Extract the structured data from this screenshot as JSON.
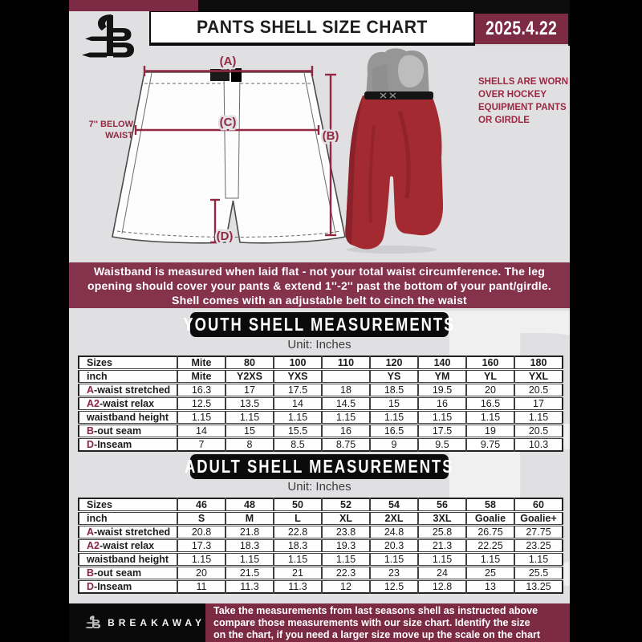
{
  "header": {
    "title": "PANTS SHELL SIZE CHART",
    "date": "2025.4.22"
  },
  "diagram": {
    "label_a": "(A)",
    "label_b": "(B)",
    "label_c": "(C)",
    "label_d": "(D)",
    "below_waist_line1": "7'' BELOW",
    "below_waist_line2": "WAIST",
    "note_line1": "SHELLS ARE WORN",
    "note_line2": "OVER HOCKEY",
    "note_line3": "EQUIPMENT PANTS",
    "note_line4": "OR GIRDLE"
  },
  "info_banner": {
    "line1": "Waistband is measured when laid flat - not your total waist circumference. The leg",
    "line2": "opening should cover your pants & extend 1''-2'' past the bottom of your pant/girdle.",
    "line3": "Shell comes with an adjustable belt to cinch the waist"
  },
  "youth": {
    "title": "YOUTH SHELL MEASUREMENTS",
    "unit": "Unit: Inches",
    "rows": [
      {
        "prefix": "",
        "label": "Sizes",
        "header": true,
        "values": [
          "Mite",
          "80",
          "100",
          "110",
          "120",
          "140",
          "160",
          "180"
        ]
      },
      {
        "prefix": "",
        "label": "inch",
        "header": true,
        "values": [
          "Mite",
          "Y2XS",
          "YXS",
          "",
          "YS",
          "YM",
          "YL",
          "YXL"
        ]
      },
      {
        "prefix": "A",
        "label": "-waist stretched",
        "header": false,
        "values": [
          "16.3",
          "17",
          "17.5",
          "18",
          "18.5",
          "19.5",
          "20",
          "20.5"
        ]
      },
      {
        "prefix": "A2",
        "label": "-waist relax",
        "header": false,
        "values": [
          "12.5",
          "13.5",
          "14",
          "14.5",
          "15",
          "16",
          "16.5",
          "17"
        ]
      },
      {
        "prefix": "",
        "label": "waistband height",
        "header": false,
        "values": [
          "1.15",
          "1.15",
          "1.15",
          "1.15",
          "1.15",
          "1.15",
          "1.15",
          "1.15"
        ]
      },
      {
        "prefix": "B",
        "label": "-out seam",
        "header": false,
        "values": [
          "14",
          "15",
          "15.5",
          "16",
          "16.5",
          "17.5",
          "19",
          "20.5"
        ]
      },
      {
        "prefix": "D",
        "label": "-Inseam",
        "header": false,
        "values": [
          "7",
          "8",
          "8.5",
          "8.75",
          "9",
          "9.5",
          "9.75",
          "10.3"
        ]
      }
    ]
  },
  "adult": {
    "title": "ADULT SHELL MEASUREMENTS",
    "unit": "Unit: Inches",
    "rows": [
      {
        "prefix": "",
        "label": "Sizes",
        "header": true,
        "values": [
          "46",
          "48",
          "50",
          "52",
          "54",
          "56",
          "58",
          "60"
        ]
      },
      {
        "prefix": "",
        "label": "inch",
        "header": true,
        "values": [
          "S",
          "M",
          "L",
          "XL",
          "2XL",
          "3XL",
          "Goalie",
          "Goalie+"
        ]
      },
      {
        "prefix": "A",
        "label": "-waist stretched",
        "header": false,
        "values": [
          "20.8",
          "21.8",
          "22.8",
          "23.8",
          "24.8",
          "25.8",
          "26.75",
          "27.75"
        ]
      },
      {
        "prefix": "A2",
        "label": "-waist relax",
        "header": false,
        "values": [
          "17.3",
          "18.3",
          "18.3",
          "19.3",
          "20.3",
          "21.3",
          "22.25",
          "23.25"
        ]
      },
      {
        "prefix": "",
        "label": "waistband height",
        "header": false,
        "values": [
          "1.15",
          "1.15",
          "1.15",
          "1.15",
          "1.15",
          "1.15",
          "1.15",
          "1.15"
        ]
      },
      {
        "prefix": "B",
        "label": "-out seam",
        "header": false,
        "values": [
          "20",
          "21.5",
          "21",
          "22.3",
          "23",
          "24",
          "25",
          "25.5"
        ]
      },
      {
        "prefix": "D",
        "label": "-Inseam",
        "header": false,
        "values": [
          "11",
          "11.3",
          "11.3",
          "12",
          "12.5",
          "12.8",
          "13",
          "13.25"
        ]
      }
    ]
  },
  "footer": {
    "brand": "BREAKAWAY",
    "line1": "Take the measurements from last seasons shell as instructed above",
    "line2": "compare those measurements  with our size chart. Identify the size",
    "line3": "on the chart, if you need a larger size move up the scale on the chart"
  },
  "watermark": "B",
  "colors": {
    "maroon_dark": "#7d2b44",
    "maroon_banner": "#85324d",
    "annotation": "#922942",
    "shell_red": "#a32a31"
  }
}
